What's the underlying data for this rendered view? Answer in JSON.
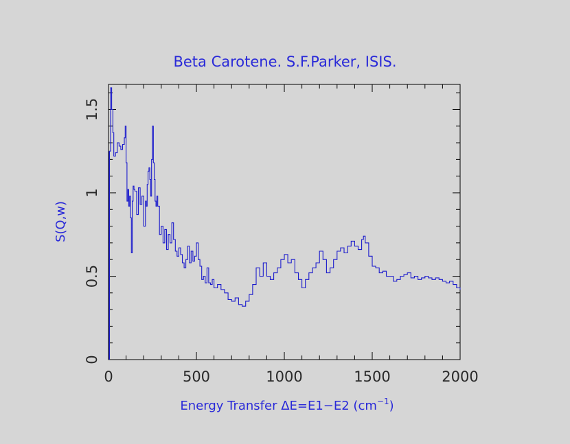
{
  "chart_data": {
    "type": "line",
    "title": "Beta Carotene. S.F.Parker, ISIS.",
    "xlabel": "Energy Transfer ΔE=E1−E2 (cm",
    "xlabel_sup": "−1",
    "xlabel_end": ")",
    "ylabel": "S(Q,w)",
    "xlim": [
      0,
      2000
    ],
    "ylim": [
      0,
      1.65
    ],
    "xticks": [
      0,
      500,
      1000,
      1500,
      2000
    ],
    "xtick_labels": [
      "0",
      "500",
      "1000",
      "1500",
      "2000"
    ],
    "yticks": [
      0,
      0.5,
      1,
      1.5
    ],
    "ytick_labels": [
      "0",
      "0.5",
      "1",
      "1.5"
    ],
    "grid": false,
    "colors": {
      "line": "#1a1acc",
      "axes": "#000000",
      "title": "#2a2ad8"
    },
    "series": [
      {
        "x": [
          5,
          12,
          18,
          25,
          30,
          40,
          50,
          60,
          70,
          80,
          90,
          95,
          100,
          105,
          110,
          115,
          120,
          125,
          130,
          135,
          140,
          145,
          150,
          160,
          170,
          180,
          190,
          200,
          210,
          215,
          220,
          225,
          230,
          235,
          240,
          245,
          250,
          255,
          260,
          265,
          270,
          275,
          280,
          290,
          300,
          310,
          320,
          330,
          340,
          350,
          360,
          370,
          380,
          390,
          400,
          410,
          420,
          430,
          440,
          450,
          460,
          470,
          480,
          490,
          500,
          510,
          520,
          530,
          540,
          550,
          560,
          570,
          580,
          590,
          600,
          620,
          640,
          660,
          680,
          700,
          720,
          740,
          760,
          780,
          800,
          820,
          840,
          860,
          880,
          900,
          920,
          940,
          960,
          980,
          1000,
          1020,
          1040,
          1060,
          1080,
          1100,
          1120,
          1140,
          1160,
          1180,
          1200,
          1220,
          1240,
          1260,
          1280,
          1300,
          1320,
          1340,
          1360,
          1380,
          1400,
          1420,
          1440,
          1450,
          1460,
          1480,
          1500,
          1520,
          1540,
          1560,
          1580,
          1600,
          1620,
          1640,
          1660,
          1680,
          1700,
          1720,
          1740,
          1760,
          1780,
          1800,
          1820,
          1840,
          1860,
          1880,
          1900,
          1920,
          1940,
          1960,
          1980,
          2000
        ],
        "values": [
          1.25,
          1.63,
          1.5,
          1.36,
          1.22,
          1.24,
          1.3,
          1.28,
          1.26,
          1.29,
          1.33,
          1.4,
          1.18,
          0.95,
          1.02,
          0.92,
          0.98,
          0.85,
          0.64,
          0.95,
          1.04,
          1.02,
          1.01,
          0.87,
          1.03,
          0.93,
          0.98,
          0.8,
          0.95,
          0.92,
          1.05,
          1.13,
          1.15,
          1.08,
          0.98,
          1.2,
          1.4,
          1.18,
          1.08,
          0.95,
          0.92,
          0.98,
          0.92,
          0.75,
          0.8,
          0.7,
          0.78,
          0.66,
          0.75,
          0.7,
          0.82,
          0.72,
          0.65,
          0.62,
          0.67,
          0.63,
          0.58,
          0.55,
          0.6,
          0.68,
          0.58,
          0.65,
          0.59,
          0.62,
          0.7,
          0.6,
          0.56,
          0.48,
          0.5,
          0.46,
          0.55,
          0.46,
          0.45,
          0.48,
          0.43,
          0.45,
          0.42,
          0.4,
          0.36,
          0.35,
          0.37,
          0.33,
          0.32,
          0.35,
          0.39,
          0.45,
          0.55,
          0.5,
          0.58,
          0.5,
          0.48,
          0.52,
          0.55,
          0.6,
          0.63,
          0.58,
          0.6,
          0.52,
          0.48,
          0.43,
          0.48,
          0.52,
          0.55,
          0.58,
          0.65,
          0.6,
          0.52,
          0.55,
          0.6,
          0.65,
          0.67,
          0.64,
          0.68,
          0.71,
          0.68,
          0.66,
          0.72,
          0.74,
          0.7,
          0.62,
          0.56,
          0.55,
          0.52,
          0.53,
          0.5,
          0.5,
          0.47,
          0.48,
          0.5,
          0.51,
          0.52,
          0.49,
          0.5,
          0.48,
          0.49,
          0.5,
          0.49,
          0.48,
          0.49,
          0.48,
          0.47,
          0.46,
          0.47,
          0.45,
          0.43,
          0.42
        ]
      }
    ]
  }
}
